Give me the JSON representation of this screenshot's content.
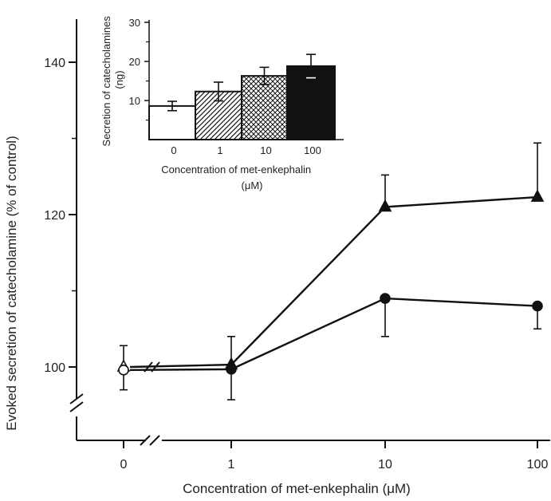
{
  "chart_data": [
    {
      "type": "line",
      "xlabel": "Concentration of met-enkephalin (μM)",
      "ylabel": "Evoked secretion of catecholamine (% of control)",
      "categories": [
        "0",
        "1",
        "10",
        "100"
      ],
      "y_ticks": [
        "100",
        "120",
        "140"
      ],
      "ylim": [
        91,
        147
      ],
      "axis_break": true,
      "series": [
        {
          "marker": "triangle",
          "values": [
            100,
            100.3,
            121,
            122.3
          ],
          "error_up": [
            2.8,
            3.7,
            4.2,
            7.1
          ],
          "error_down": [
            0,
            0,
            0,
            0
          ],
          "hollow_first_point": true
        },
        {
          "marker": "circle",
          "values": [
            99.6,
            99.7,
            109,
            108
          ],
          "error_up": [
            0,
            0,
            0,
            0
          ],
          "error_down": [
            2.6,
            4,
            5,
            3
          ],
          "hollow_first_point": true
        }
      ]
    },
    {
      "type": "bar",
      "categories": [
        "0",
        "1",
        "10",
        "100"
      ],
      "values": [
        8.6,
        12.3,
        16.3,
        18.8
      ],
      "errors": [
        1.2,
        2.4,
        2.2,
        3.0
      ],
      "fills": [
        "white",
        "diagonal-hatch",
        "crosshatch",
        "black"
      ],
      "y_ticks": [
        "10",
        "20",
        "30"
      ],
      "ylim": [
        0,
        30
      ],
      "ylabel": "Secretion of catecholamines (ng)",
      "xlabel": "Concentration of met-enkephalin (μM)"
    }
  ]
}
